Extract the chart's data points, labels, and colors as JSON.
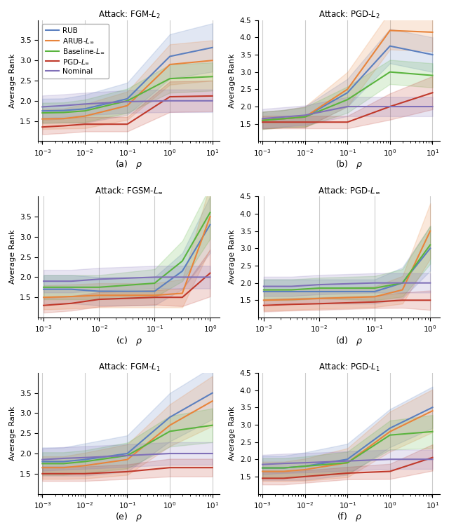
{
  "titles": [
    "Attack: FGM-$L_2$",
    "Attack: PGD-$L_2$",
    "Attack: FGSM-$L_\\infty$",
    "Attack: PGD-$L_\\infty$",
    "Attack: FGM-$L_1$",
    "Attack: PGD-$L_1$"
  ],
  "subplot_labels": [
    "(a)",
    "(b)",
    "(c)",
    "(d)",
    "(e)",
    "(f)"
  ],
  "legend_labels": [
    "RUB",
    "ARUB-$L_\\infty$",
    "Baseline-$L_\\infty$",
    "PGD-$L_\\infty$",
    "Nominal"
  ],
  "colors": [
    "#5b7fbf",
    "#e8843b",
    "#5ab43e",
    "#c0392b",
    "#8070b8"
  ],
  "panels": [
    {
      "xlim_max_exp": 1,
      "x_exp": [
        -3,
        -2.5,
        -2,
        -1,
        0,
        1
      ],
      "means": [
        [
          1.75,
          1.76,
          1.8,
          2.05,
          3.1,
          3.32
        ],
        [
          1.55,
          1.56,
          1.62,
          1.88,
          2.9,
          3.0
        ],
        [
          1.7,
          1.71,
          1.75,
          2.0,
          2.55,
          2.6
        ],
        [
          1.35,
          1.38,
          1.42,
          1.42,
          2.1,
          2.12
        ],
        [
          1.85,
          1.88,
          1.92,
          1.98,
          2.0,
          2.0
        ]
      ],
      "stds": [
        [
          0.3,
          0.3,
          0.35,
          0.4,
          0.55,
          0.6
        ],
        [
          0.25,
          0.25,
          0.3,
          0.35,
          0.5,
          0.5
        ],
        [
          0.25,
          0.25,
          0.28,
          0.3,
          0.35,
          0.35
        ],
        [
          0.18,
          0.18,
          0.18,
          0.18,
          0.38,
          0.38
        ],
        [
          0.28,
          0.28,
          0.28,
          0.28,
          0.28,
          0.28
        ]
      ],
      "ylim": [
        1.0,
        4.0
      ],
      "yticks": [
        1.5,
        2.0,
        2.5,
        3.0,
        3.5
      ]
    },
    {
      "xlim_max_exp": 1,
      "x_exp": [
        -3,
        -2.5,
        -2,
        -1,
        0,
        1
      ],
      "means": [
        [
          1.6,
          1.65,
          1.7,
          2.4,
          3.75,
          3.5
        ],
        [
          1.6,
          1.65,
          1.7,
          2.5,
          4.2,
          4.15
        ],
        [
          1.6,
          1.65,
          1.7,
          2.2,
          3.0,
          2.9
        ],
        [
          1.55,
          1.55,
          1.55,
          1.55,
          2.0,
          2.4
        ],
        [
          1.65,
          1.7,
          1.75,
          2.0,
          2.0,
          2.0
        ]
      ],
      "stds": [
        [
          0.25,
          0.25,
          0.3,
          0.4,
          0.5,
          0.5
        ],
        [
          0.25,
          0.25,
          0.3,
          0.5,
          0.55,
          0.55
        ],
        [
          0.25,
          0.25,
          0.28,
          0.38,
          0.35,
          0.35
        ],
        [
          0.18,
          0.18,
          0.18,
          0.18,
          0.38,
          0.48
        ],
        [
          0.28,
          0.28,
          0.28,
          0.28,
          0.28,
          0.28
        ]
      ],
      "ylim": [
        1.0,
        4.5
      ],
      "yticks": [
        1.5,
        2.0,
        2.5,
        3.0,
        3.5,
        4.0,
        4.5
      ]
    },
    {
      "xlim_max_exp": 0,
      "x_exp": [
        -3,
        -2.5,
        -2,
        -1,
        -0.5,
        0
      ],
      "means": [
        [
          1.7,
          1.7,
          1.65,
          1.65,
          2.15,
          3.3
        ],
        [
          1.5,
          1.52,
          1.55,
          1.55,
          1.6,
          3.5
        ],
        [
          1.75,
          1.75,
          1.75,
          1.85,
          2.4,
          3.6
        ],
        [
          1.3,
          1.35,
          1.45,
          1.5,
          1.5,
          2.1
        ],
        [
          1.9,
          1.9,
          1.95,
          2.0,
          2.0,
          2.0
        ]
      ],
      "stds": [
        [
          0.35,
          0.35,
          0.35,
          0.35,
          0.45,
          0.7
        ],
        [
          0.3,
          0.3,
          0.3,
          0.3,
          0.35,
          0.8
        ],
        [
          0.3,
          0.3,
          0.3,
          0.35,
          0.5,
          0.65
        ],
        [
          0.18,
          0.18,
          0.18,
          0.18,
          0.22,
          0.58
        ],
        [
          0.28,
          0.28,
          0.28,
          0.28,
          0.28,
          0.28
        ]
      ],
      "ylim": [
        1.0,
        4.0
      ],
      "yticks": [
        1.5,
        2.0,
        2.5,
        3.0,
        3.5
      ]
    },
    {
      "xlim_max_exp": 0,
      "x_exp": [
        -3,
        -2.5,
        -2,
        -1,
        -0.5,
        0
      ],
      "means": [
        [
          1.75,
          1.75,
          1.75,
          1.75,
          2.0,
          3.0
        ],
        [
          1.5,
          1.52,
          1.55,
          1.6,
          1.8,
          3.5
        ],
        [
          1.8,
          1.8,
          1.85,
          1.85,
          2.0,
          3.1
        ],
        [
          1.35,
          1.38,
          1.4,
          1.45,
          1.5,
          1.5
        ],
        [
          1.9,
          1.9,
          1.95,
          2.0,
          2.0,
          2.0
        ]
      ],
      "stds": [
        [
          0.35,
          0.35,
          0.35,
          0.35,
          0.45,
          0.65
        ],
        [
          0.3,
          0.3,
          0.3,
          0.3,
          0.4,
          0.8
        ],
        [
          0.3,
          0.3,
          0.3,
          0.35,
          0.4,
          0.55
        ],
        [
          0.18,
          0.18,
          0.18,
          0.18,
          0.22,
          0.28
        ],
        [
          0.28,
          0.28,
          0.28,
          0.28,
          0.28,
          0.28
        ]
      ],
      "ylim": [
        1.0,
        4.5
      ],
      "yticks": [
        1.5,
        2.0,
        2.5,
        3.0,
        3.5,
        4.0,
        4.5
      ]
    },
    {
      "xlim_max_exp": 1,
      "x_exp": [
        -3,
        -2.5,
        -2,
        -1,
        0,
        1
      ],
      "means": [
        [
          1.8,
          1.8,
          1.85,
          2.0,
          2.9,
          3.5
        ],
        [
          1.65,
          1.65,
          1.7,
          1.85,
          2.7,
          3.3
        ],
        [
          1.75,
          1.75,
          1.8,
          1.95,
          2.55,
          2.7
        ],
        [
          1.5,
          1.5,
          1.5,
          1.55,
          1.65,
          1.65
        ],
        [
          1.85,
          1.88,
          1.9,
          1.95,
          2.0,
          2.0
        ]
      ],
      "stds": [
        [
          0.35,
          0.35,
          0.4,
          0.45,
          0.6,
          0.65
        ],
        [
          0.28,
          0.28,
          0.32,
          0.38,
          0.52,
          0.62
        ],
        [
          0.28,
          0.28,
          0.28,
          0.32,
          0.38,
          0.42
        ],
        [
          0.18,
          0.18,
          0.18,
          0.18,
          0.22,
          0.22
        ],
        [
          0.28,
          0.28,
          0.28,
          0.28,
          0.28,
          0.28
        ]
      ],
      "ylim": [
        1.0,
        4.0
      ],
      "yticks": [
        1.5,
        2.0,
        2.5,
        3.0,
        3.5
      ]
    },
    {
      "xlim_max_exp": 1,
      "x_exp": [
        -3,
        -2.5,
        -2,
        -1,
        0,
        1
      ],
      "means": [
        [
          1.75,
          1.75,
          1.8,
          2.0,
          2.9,
          3.5
        ],
        [
          1.65,
          1.65,
          1.7,
          1.9,
          2.8,
          3.4
        ],
        [
          1.75,
          1.75,
          1.8,
          1.9,
          2.7,
          2.8
        ],
        [
          1.45,
          1.45,
          1.5,
          1.6,
          1.65,
          2.05
        ],
        [
          1.85,
          1.88,
          1.9,
          1.95,
          2.0,
          2.0
        ]
      ],
      "stds": [
        [
          0.35,
          0.35,
          0.4,
          0.45,
          0.55,
          0.6
        ],
        [
          0.28,
          0.28,
          0.32,
          0.42,
          0.58,
          0.62
        ],
        [
          0.28,
          0.28,
          0.28,
          0.32,
          0.42,
          0.48
        ],
        [
          0.18,
          0.18,
          0.18,
          0.18,
          0.22,
          0.38
        ],
        [
          0.28,
          0.28,
          0.28,
          0.28,
          0.28,
          0.28
        ]
      ],
      "ylim": [
        1.0,
        4.5
      ],
      "yticks": [
        1.5,
        2.0,
        2.5,
        3.0,
        3.5,
        4.0,
        4.5
      ]
    }
  ]
}
